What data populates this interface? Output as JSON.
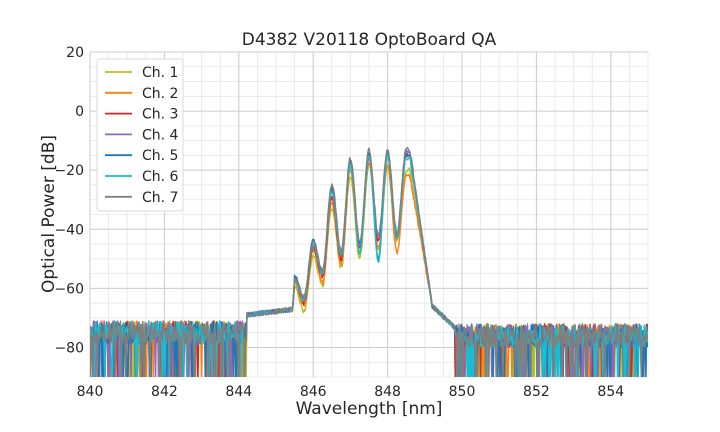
{
  "chart_data": {
    "type": "line",
    "title": "D4382 V20118 OptoBoard QA",
    "xlabel": "Wavelength [nm]",
    "ylabel": "Optical Power [dB]",
    "xlim": [
      840,
      855
    ],
    "ylim": [
      -90,
      20
    ],
    "xticks": [
      840,
      842,
      844,
      846,
      848,
      850,
      852,
      854
    ],
    "xtick_labels": [
      "840",
      "842",
      "844",
      "846",
      "848",
      "850",
      "852",
      "854"
    ],
    "yticks": [
      20,
      0,
      -20,
      -40,
      -60,
      -80
    ],
    "ytick_labels": [
      "20",
      "0",
      "−20",
      "−40",
      "−60",
      "−80"
    ],
    "grid": true,
    "legend_position": "top-left",
    "series": [
      {
        "name": "Ch. 1",
        "color": "#bcbd22",
        "peaks": [
          {
            "x": 845.5,
            "y": -59
          },
          {
            "x": 846.0,
            "y": -49
          },
          {
            "x": 846.5,
            "y": -33
          },
          {
            "x": 847.0,
            "y": -22
          },
          {
            "x": 847.5,
            "y": -18
          },
          {
            "x": 848.0,
            "y": -19
          },
          {
            "x": 848.5,
            "y": -20
          }
        ],
        "valleys": [
          {
            "x": 845.75,
            "y": -68
          },
          {
            "x": 846.25,
            "y": -59
          },
          {
            "x": 846.75,
            "y": -53
          },
          {
            "x": 847.25,
            "y": -50
          },
          {
            "x": 847.75,
            "y": -47
          },
          {
            "x": 848.25,
            "y": -44
          }
        ]
      },
      {
        "name": "Ch. 2",
        "color": "#ff7f0e",
        "peaks": [
          {
            "x": 845.5,
            "y": -58
          },
          {
            "x": 846.0,
            "y": -47
          },
          {
            "x": 846.5,
            "y": -31
          },
          {
            "x": 847.0,
            "y": -20
          },
          {
            "x": 847.5,
            "y": -17
          },
          {
            "x": 848.0,
            "y": -18
          },
          {
            "x": 848.5,
            "y": -22
          }
        ],
        "valleys": [
          {
            "x": 845.75,
            "y": -66
          },
          {
            "x": 846.25,
            "y": -58
          },
          {
            "x": 846.75,
            "y": -52
          },
          {
            "x": 847.25,
            "y": -48
          },
          {
            "x": 847.75,
            "y": -46
          },
          {
            "x": 848.25,
            "y": -48
          }
        ]
      },
      {
        "name": "Ch. 3",
        "color": "#d62728",
        "peaks": [
          {
            "x": 845.5,
            "y": -57
          },
          {
            "x": 846.0,
            "y": -46
          },
          {
            "x": 846.5,
            "y": -29
          },
          {
            "x": 847.0,
            "y": -18
          },
          {
            "x": 847.5,
            "y": -16
          },
          {
            "x": 848.0,
            "y": -15
          },
          {
            "x": 848.5,
            "y": -15
          }
        ],
        "valleys": [
          {
            "x": 845.75,
            "y": -65
          },
          {
            "x": 846.25,
            "y": -56
          },
          {
            "x": 846.75,
            "y": -50
          },
          {
            "x": 847.25,
            "y": -46
          },
          {
            "x": 847.75,
            "y": -44
          },
          {
            "x": 848.25,
            "y": -43
          }
        ]
      },
      {
        "name": "Ch. 4",
        "color": "#9467bd",
        "peaks": [
          {
            "x": 845.5,
            "y": -56
          },
          {
            "x": 846.0,
            "y": -45
          },
          {
            "x": 846.5,
            "y": -27
          },
          {
            "x": 847.0,
            "y": -17
          },
          {
            "x": 847.5,
            "y": -15
          },
          {
            "x": 848.0,
            "y": -14
          },
          {
            "x": 848.5,
            "y": -14
          }
        ],
        "valleys": [
          {
            "x": 845.75,
            "y": -64
          },
          {
            "x": 846.25,
            "y": -55
          },
          {
            "x": 846.75,
            "y": -49
          },
          {
            "x": 847.25,
            "y": -45
          },
          {
            "x": 847.75,
            "y": -43
          },
          {
            "x": 848.25,
            "y": -42
          }
        ]
      },
      {
        "name": "Ch. 5",
        "color": "#1f77b4",
        "peaks": [
          {
            "x": 845.5,
            "y": -56
          },
          {
            "x": 846.0,
            "y": -44
          },
          {
            "x": 846.5,
            "y": -26
          },
          {
            "x": 847.0,
            "y": -17
          },
          {
            "x": 847.5,
            "y": -14
          },
          {
            "x": 848.0,
            "y": -14
          },
          {
            "x": 848.5,
            "y": -15
          }
        ],
        "valleys": [
          {
            "x": 845.75,
            "y": -63
          },
          {
            "x": 846.25,
            "y": -54
          },
          {
            "x": 846.75,
            "y": -48
          },
          {
            "x": 847.25,
            "y": -45
          },
          {
            "x": 847.75,
            "y": -50
          },
          {
            "x": 848.25,
            "y": -42
          }
        ]
      },
      {
        "name": "Ch. 6",
        "color": "#17becf",
        "peaks": [
          {
            "x": 845.5,
            "y": -57
          },
          {
            "x": 846.0,
            "y": -45
          },
          {
            "x": 846.5,
            "y": -27
          },
          {
            "x": 847.0,
            "y": -18
          },
          {
            "x": 847.5,
            "y": -15
          },
          {
            "x": 848.0,
            "y": -15
          },
          {
            "x": 848.5,
            "y": -16
          }
        ],
        "valleys": [
          {
            "x": 845.75,
            "y": -64
          },
          {
            "x": 846.25,
            "y": -55
          },
          {
            "x": 846.75,
            "y": -49
          },
          {
            "x": 847.25,
            "y": -48
          },
          {
            "x": 847.75,
            "y": -51
          },
          {
            "x": 848.25,
            "y": -43
          }
        ]
      },
      {
        "name": "Ch. 7",
        "color": "#7f7f7f",
        "peaks": [
          {
            "x": 845.5,
            "y": -56
          },
          {
            "x": 846.0,
            "y": -44
          },
          {
            "x": 846.5,
            "y": -25
          },
          {
            "x": 847.0,
            "y": -16
          },
          {
            "x": 847.5,
            "y": -13
          },
          {
            "x": 848.0,
            "y": -13
          },
          {
            "x": 848.5,
            "y": -13
          }
        ],
        "valleys": [
          {
            "x": 845.75,
            "y": -63
          },
          {
            "x": 846.25,
            "y": -54
          },
          {
            "x": 846.75,
            "y": -47
          },
          {
            "x": 847.25,
            "y": -44
          },
          {
            "x": 847.75,
            "y": -42
          },
          {
            "x": 848.25,
            "y": -41
          }
        ]
      }
    ]
  }
}
